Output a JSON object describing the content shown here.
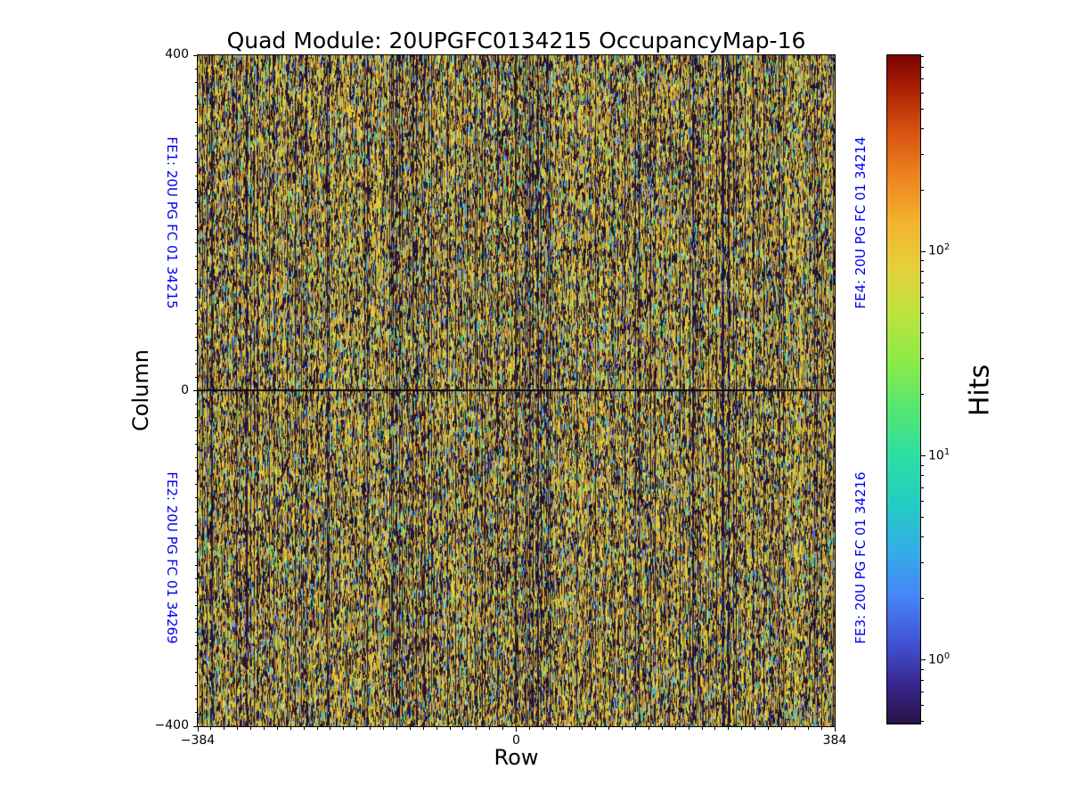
{
  "figure": {
    "background": "#ffffff"
  },
  "chart_data": {
    "type": "heatmap",
    "title": "Quad Module: 20UPGFC0134215 OccupancyMap-16",
    "xlabel": "Row",
    "ylabel": "Column",
    "x_axis": {
      "min": -384,
      "max": 384,
      "major_ticks": [
        -384,
        0,
        384
      ],
      "minor_tick_step": 16
    },
    "y_axis": {
      "min": -400,
      "max": 400,
      "major_ticks": [
        -400,
        0,
        400
      ],
      "minor_tick_step": 16
    },
    "grid": false,
    "fe_label_color": "#0000ee",
    "fe_labels": [
      {
        "id": "FE1",
        "text": "FE1: 20U PG FC 01 34215",
        "position": "left-top"
      },
      {
        "id": "FE2",
        "text": "FE2: 20U PG FC 01 34269",
        "position": "left-bottom"
      },
      {
        "id": "FE4",
        "text": "FE4: 20U PG FC 01 34214",
        "position": "right-top"
      },
      {
        "id": "FE3",
        "text": "FE3: 20U PG FC 01 34216",
        "position": "right-bottom"
      }
    ],
    "colorbar": {
      "label": "Hits",
      "scale": "log",
      "vmin": 0.49,
      "vmax": 915,
      "major_ticks": [
        {
          "value": 1,
          "exp": 0,
          "label": "10⁰"
        },
        {
          "value": 10,
          "exp": 1,
          "label": "10¹"
        },
        {
          "value": 100,
          "exp": 2,
          "label": "10²"
        }
      ],
      "colormap": "turbo",
      "gradient_stops": [
        {
          "pos": 0,
          "color": "#2a1045"
        },
        {
          "pos": 6,
          "color": "#37278f"
        },
        {
          "pos": 12,
          "color": "#4152d5"
        },
        {
          "pos": 19,
          "color": "#4784f7"
        },
        {
          "pos": 26,
          "color": "#33aee6"
        },
        {
          "pos": 33,
          "color": "#23cdc2"
        },
        {
          "pos": 40,
          "color": "#2ddea2"
        },
        {
          "pos": 47,
          "color": "#55e671"
        },
        {
          "pos": 54,
          "color": "#8bea48"
        },
        {
          "pos": 61,
          "color": "#bce340"
        },
        {
          "pos": 68,
          "color": "#e3d13b"
        },
        {
          "pos": 75,
          "color": "#f3b32e"
        },
        {
          "pos": 82,
          "color": "#ed8220"
        },
        {
          "pos": 89,
          "color": "#d54f10"
        },
        {
          "pos": 95,
          "color": "#aa2004"
        },
        {
          "pos": 100,
          "color": "#7a0403"
        }
      ]
    },
    "heatmap": {
      "n_columns": 768,
      "n_rows": 800,
      "pattern": "dense vertical striped occupancy noise on dark background, dark cross lines at row 0 and column 0",
      "background": "#2b1834",
      "center_line_color": "#0d0714",
      "seed": 42,
      "palette": {
        "dark": [
          "#2b1834",
          "#241330",
          "#321d3e",
          "#1d0f27"
        ],
        "yellow": [
          "#d9c83f",
          "#e4d447",
          "#cbb83a",
          "#dfce44"
        ],
        "olive": [
          "#8f7c35",
          "#a28d3c",
          "#7a692e",
          "#b09a42"
        ],
        "orange": [
          "#cf9232",
          "#c07a28",
          "#e0a838"
        ],
        "cool": [
          "#4a5cd4",
          "#5a8ae0",
          "#38c4d8",
          "#46cf63",
          "#2cc89e",
          "#3db4e8",
          "#6aa0ec"
        ]
      }
    }
  }
}
